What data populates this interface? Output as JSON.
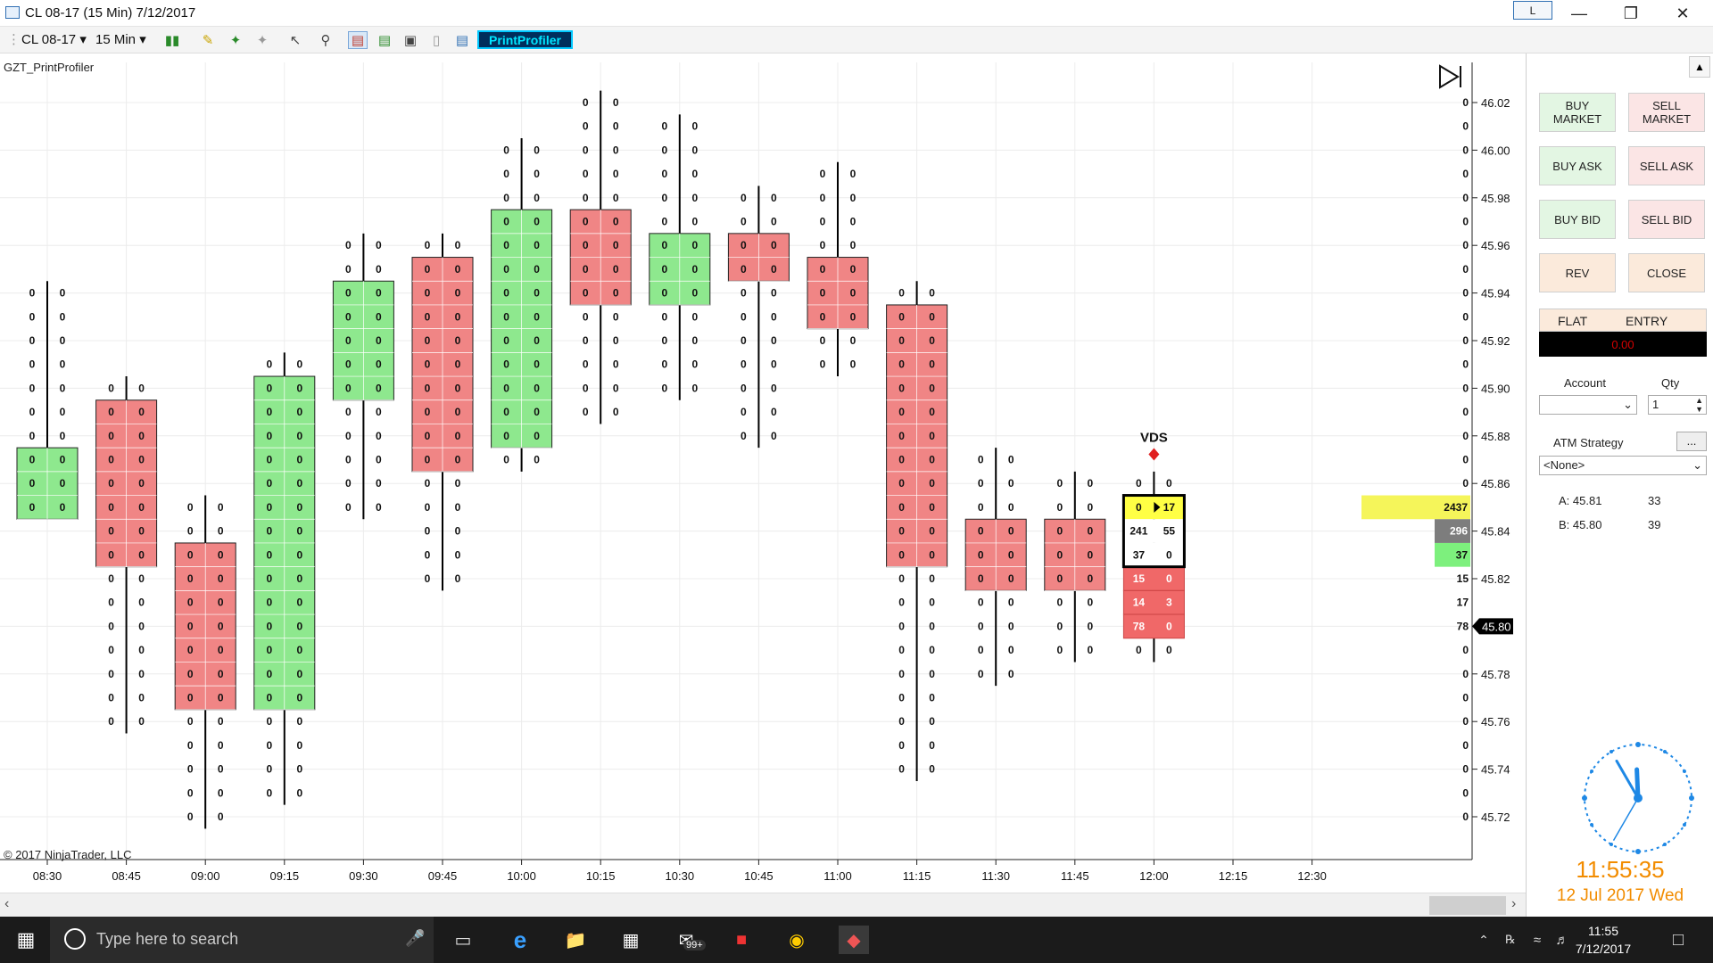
{
  "window": {
    "title": "CL 08-17 (15 Min)  7/12/2017",
    "link_button": "L"
  },
  "toolbar": {
    "instrument": "CL 08-17",
    "interval": "15 Min",
    "print_profiler_button": "PrintProfiler"
  },
  "chart": {
    "indicator_label": "GZT_PrintProfiler",
    "copyright": "© 2017 NinjaTrader, LLC",
    "vds_label": "VDS",
    "price_ticks": [
      "46.02",
      "46.00",
      "45.98",
      "45.96",
      "45.94",
      "45.92",
      "45.90",
      "45.88",
      "45.86",
      "45.84",
      "45.82",
      "45.80",
      "45.78",
      "45.76",
      "45.74",
      "45.72"
    ],
    "time_labels": [
      "08:30",
      "08:45",
      "09:00",
      "09:15",
      "09:30",
      "09:45",
      "10:00",
      "10:15",
      "10:30",
      "10:45",
      "11:00",
      "11:15",
      "11:30",
      "11:45",
      "12:00",
      "12:15",
      "12:30"
    ],
    "current_price": "45.80",
    "right_volumes": [
      {
        "price": 45.85,
        "value": "2437",
        "color": "#f5f55a"
      },
      {
        "price": 45.84,
        "value": "296",
        "color": "#7d7d7d"
      },
      {
        "price": 45.83,
        "value": "37",
        "color": "#7df07d"
      }
    ],
    "right_counts": [
      {
        "price": 45.82,
        "value": "15"
      },
      {
        "price": 45.81,
        "value": "17"
      },
      {
        "price": 45.8,
        "value": "78"
      }
    ]
  },
  "chart_data": {
    "type": "footprint",
    "tick_size": 0.01,
    "y_range": [
      45.72,
      46.02
    ],
    "bars": [
      {
        "time": "08:30",
        "high": 45.94,
        "low": 45.85,
        "open": 45.85,
        "close": 45.87,
        "direction": "up"
      },
      {
        "time": "08:45",
        "high": 45.9,
        "low": 45.76,
        "open": 45.89,
        "close": 45.83,
        "direction": "down"
      },
      {
        "time": "09:00",
        "high": 45.85,
        "low": 45.72,
        "open": 45.83,
        "close": 45.77,
        "direction": "down"
      },
      {
        "time": "09:15",
        "high": 45.91,
        "low": 45.73,
        "open": 45.77,
        "close": 45.9,
        "direction": "up"
      },
      {
        "time": "09:30",
        "high": 45.96,
        "low": 45.85,
        "open": 45.9,
        "close": 45.94,
        "direction": "up"
      },
      {
        "time": "09:45",
        "high": 45.96,
        "low": 45.82,
        "open": 45.95,
        "close": 45.87,
        "direction": "down"
      },
      {
        "time": "10:00",
        "high": 46.0,
        "low": 45.87,
        "open": 45.88,
        "close": 45.97,
        "direction": "up"
      },
      {
        "time": "10:15",
        "high": 46.02,
        "low": 45.89,
        "open": 45.97,
        "close": 45.94,
        "direction": "down"
      },
      {
        "time": "10:30",
        "high": 46.01,
        "low": 45.9,
        "open": 45.94,
        "close": 45.96,
        "direction": "up"
      },
      {
        "time": "10:45",
        "high": 45.98,
        "low": 45.88,
        "open": 45.96,
        "close": 45.95,
        "direction": "down"
      },
      {
        "time": "11:00",
        "high": 45.99,
        "low": 45.91,
        "open": 45.95,
        "close": 45.93,
        "direction": "down"
      },
      {
        "time": "11:15",
        "high": 45.94,
        "low": 45.74,
        "open": 45.93,
        "close": 45.83,
        "direction": "down"
      },
      {
        "time": "11:30",
        "high": 45.87,
        "low": 45.78,
        "open": 45.84,
        "close": 45.82,
        "direction": "down"
      },
      {
        "time": "11:45",
        "high": 45.86,
        "low": 45.79,
        "open": 45.84,
        "close": 45.82,
        "direction": "down"
      }
    ],
    "current_bar": {
      "time": "12:00",
      "high": 45.86,
      "low": 45.79,
      "levels": [
        {
          "price": 45.86,
          "bid": "0",
          "ask": "0",
          "style": "plain"
        },
        {
          "price": 45.85,
          "bid": "0",
          "ask": "17",
          "style": "yellow"
        },
        {
          "price": 45.84,
          "bid": "241",
          "ask": "55",
          "style": "white"
        },
        {
          "price": 45.83,
          "bid": "37",
          "ask": "0",
          "style": "white"
        },
        {
          "price": 45.82,
          "bid": "15",
          "ask": "0",
          "style": "red"
        },
        {
          "price": 45.81,
          "bid": "14",
          "ask": "3",
          "style": "red"
        },
        {
          "price": 45.8,
          "bid": "78",
          "ask": "0",
          "style": "red"
        },
        {
          "price": 45.79,
          "bid": "0",
          "ask": "0",
          "style": "plain"
        }
      ]
    }
  },
  "side_panel": {
    "buttons": [
      {
        "label": "BUY MARKET",
        "kind": "buy"
      },
      {
        "label": "SELL MARKET",
        "kind": "sell"
      },
      {
        "label": "BUY ASK",
        "kind": "buy"
      },
      {
        "label": "SELL ASK",
        "kind": "sell"
      },
      {
        "label": "BUY BID",
        "kind": "buy"
      },
      {
        "label": "SELL BID",
        "kind": "sell"
      },
      {
        "label": "REV",
        "kind": "neu"
      },
      {
        "label": "CLOSE",
        "kind": "neu"
      }
    ],
    "flat": "FLAT",
    "entry": "ENTRY",
    "pnl": "0.00",
    "account_label": "Account",
    "qty_label": "Qty",
    "qty_value": "1",
    "atm_label": "ATM Strategy",
    "atm_more": "...",
    "atm_value": "<None>",
    "ask_label": "A: 45.81",
    "ask_size": "33",
    "bid_label": "B: 45.80",
    "bid_size": "39",
    "clock_time": "11:55:35",
    "clock_date": "12 Jul 2017 Wed",
    "clock_hour": 11,
    "clock_minute": 55,
    "clock_second": 35
  },
  "taskbar": {
    "search_placeholder": "Type here to search",
    "mail_badge": "99+",
    "tray_time": "11:55",
    "tray_date": "7/12/2017"
  }
}
